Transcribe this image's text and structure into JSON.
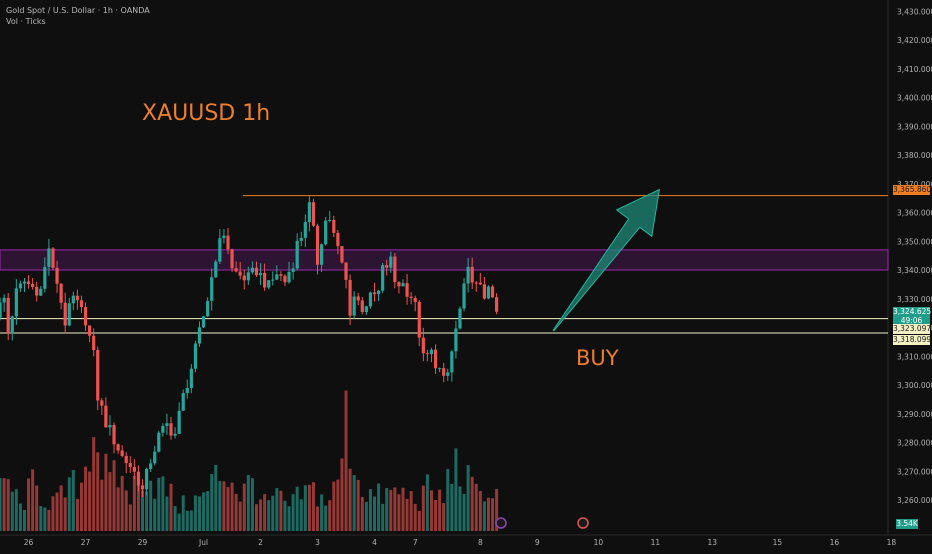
{
  "header": {
    "symbol_line": "Gold Spot / U.S. Dollar · 1h · OANDA",
    "volume_line": "Vol · Ticks"
  },
  "annotations": {
    "title": "XAUUSD 1h",
    "signal": "BUY"
  },
  "price_tags": {
    "target": "3,365.860",
    "last_price": "3,324.625",
    "countdown": "49:06",
    "support_upper": "3,323.097",
    "support_lower": "3,318.099",
    "volume": "3.54K"
  },
  "colors": {
    "background": "#0f0f0f",
    "up": "#26a69a",
    "down": "#ef5350",
    "annotation": "#ec7f2c",
    "zone": "#9c27b0",
    "support": "#f3f1c4",
    "arrow": "#1e8a78"
  },
  "chart_data": {
    "type": "candlestick",
    "y_axis_ticks": [
      3260,
      3270,
      3280,
      3290,
      3300,
      3310,
      3320,
      3330,
      3340,
      3350,
      3360,
      3370,
      3380,
      3390,
      3400,
      3410,
      3420,
      3430
    ],
    "y_axis_tick_labels": [
      "3,260.000",
      "3,270.000",
      "3,280.000",
      "3,290.000",
      "3,300.000",
      "3,310.000",
      "3,320.000",
      "3,330.000",
      "3,340.000",
      "3,350.000",
      "3,360.000",
      "3,370.000",
      "3,380.000",
      "3,390.000",
      "3,400.000",
      "3,410.000",
      "3,420.000",
      "3,430.000"
    ],
    "x_axis_labels": [
      {
        "label": "26",
        "bar": 8
      },
      {
        "label": "27",
        "bar": 22
      },
      {
        "label": "29",
        "bar": 36
      },
      {
        "label": "Jul",
        "bar": 51
      },
      {
        "label": "2",
        "bar": 65
      },
      {
        "label": "3",
        "bar": 79
      },
      {
        "label": "4",
        "bar": 93
      },
      {
        "label": "7",
        "bar": 103
      },
      {
        "label": "8",
        "bar": 119
      },
      {
        "label": "9",
        "bar": 133
      },
      {
        "label": "10",
        "bar": 148
      },
      {
        "label": "11",
        "bar": 162
      },
      {
        "label": "13",
        "bar": 176
      },
      {
        "label": "15",
        "bar": 192
      },
      {
        "label": "16",
        "bar": 206
      },
      {
        "label": "18",
        "bar": 220
      }
    ],
    "ylim": [
      3252,
      3436
    ],
    "resistance_zone": [
      3340,
      3347
    ],
    "target_level": 3365.86,
    "support_levels": [
      3323.097,
      3318.099
    ],
    "arrow": {
      "from": {
        "bar": 137,
        "price": 3319
      },
      "to": {
        "bar": 163,
        "price": 3368
      }
    },
    "anchors": [
      [
        0,
        3325
      ],
      [
        2,
        3330
      ],
      [
        3,
        3318
      ],
      [
        5,
        3332
      ],
      [
        7,
        3336
      ],
      [
        9,
        3334
      ],
      [
        11,
        3333
      ],
      [
        13,
        3348
      ],
      [
        14,
        3339
      ],
      [
        15,
        3336
      ],
      [
        17,
        3322
      ],
      [
        19,
        3330
      ],
      [
        22,
        3323
      ],
      [
        24,
        3310
      ],
      [
        25,
        3296
      ],
      [
        27,
        3287
      ],
      [
        29,
        3281
      ],
      [
        31,
        3275
      ],
      [
        33,
        3272
      ],
      [
        35,
        3267
      ],
      [
        36,
        3263
      ],
      [
        38,
        3274
      ],
      [
        40,
        3282
      ],
      [
        42,
        3286
      ],
      [
        44,
        3283
      ],
      [
        46,
        3296
      ],
      [
        48,
        3306
      ],
      [
        50,
        3318
      ],
      [
        52,
        3330
      ],
      [
        54,
        3345
      ],
      [
        56,
        3353
      ],
      [
        57,
        3348
      ],
      [
        58,
        3340
      ],
      [
        60,
        3338
      ],
      [
        62,
        3337
      ],
      [
        64,
        3340
      ],
      [
        66,
        3336
      ],
      [
        67,
        3334
      ],
      [
        69,
        3339
      ],
      [
        71,
        3336
      ],
      [
        73,
        3343
      ],
      [
        74,
        3349
      ],
      [
        75,
        3352
      ],
      [
        76,
        3358
      ],
      [
        77,
        3362
      ],
      [
        78,
        3353
      ],
      [
        79,
        3343
      ],
      [
        80,
        3351
      ],
      [
        81,
        3357
      ],
      [
        82,
        3358
      ],
      [
        83,
        3352
      ],
      [
        85,
        3342
      ],
      [
        86,
        3336
      ],
      [
        87,
        3326
      ],
      [
        88,
        3331
      ],
      [
        90,
        3327
      ],
      [
        92,
        3330
      ],
      [
        94,
        3332
      ],
      [
        95,
        3340
      ],
      [
        97,
        3343
      ],
      [
        98,
        3336
      ],
      [
        100,
        3335
      ],
      [
        102,
        3331
      ],
      [
        103,
        3327
      ],
      [
        104,
        3318
      ],
      [
        105,
        3309
      ],
      [
        107,
        3311
      ],
      [
        109,
        3305
      ],
      [
        110,
        3301
      ],
      [
        111,
        3304
      ],
      [
        113,
        3319
      ],
      [
        115,
        3333
      ],
      [
        116,
        3339
      ],
      [
        117,
        3338
      ],
      [
        118,
        3334
      ],
      [
        119,
        3333
      ],
      [
        120,
        3331
      ],
      [
        121,
        3336
      ],
      [
        122,
        3328
      ],
      [
        123,
        3325
      ]
    ],
    "volume_profile": [
      [
        0,
        0.28
      ],
      [
        3,
        0.42
      ],
      [
        6,
        0.2
      ],
      [
        9,
        0.38
      ],
      [
        12,
        0.26
      ],
      [
        15,
        0.24
      ],
      [
        18,
        0.36
      ],
      [
        21,
        0.4
      ],
      [
        24,
        0.9
      ],
      [
        26,
        0.55
      ],
      [
        28,
        0.4
      ],
      [
        30,
        0.45
      ],
      [
        33,
        0.3
      ],
      [
        36,
        0.5
      ],
      [
        39,
        0.4
      ],
      [
        42,
        0.34
      ],
      [
        45,
        0.2
      ],
      [
        48,
        0.24
      ],
      [
        51,
        0.28
      ],
      [
        54,
        0.45
      ],
      [
        57,
        0.48
      ],
      [
        60,
        0.3
      ],
      [
        63,
        0.42
      ],
      [
        66,
        0.22
      ],
      [
        69,
        0.28
      ],
      [
        72,
        0.2
      ],
      [
        75,
        0.3
      ],
      [
        78,
        0.34
      ],
      [
        81,
        0.24
      ],
      [
        84,
        0.38
      ],
      [
        86,
        0.92
      ],
      [
        88,
        0.55
      ],
      [
        90,
        0.36
      ],
      [
        93,
        0.28
      ],
      [
        96,
        0.3
      ],
      [
        99,
        0.32
      ],
      [
        102,
        0.28
      ],
      [
        104,
        0.26
      ],
      [
        106,
        0.34
      ],
      [
        108,
        0.3
      ],
      [
        110,
        0.26
      ],
      [
        112,
        0.58
      ],
      [
        114,
        0.46
      ],
      [
        116,
        0.4
      ],
      [
        118,
        0.3
      ],
      [
        120,
        0.38
      ],
      [
        122,
        0.24
      ],
      [
        123,
        0.48
      ]
    ]
  }
}
